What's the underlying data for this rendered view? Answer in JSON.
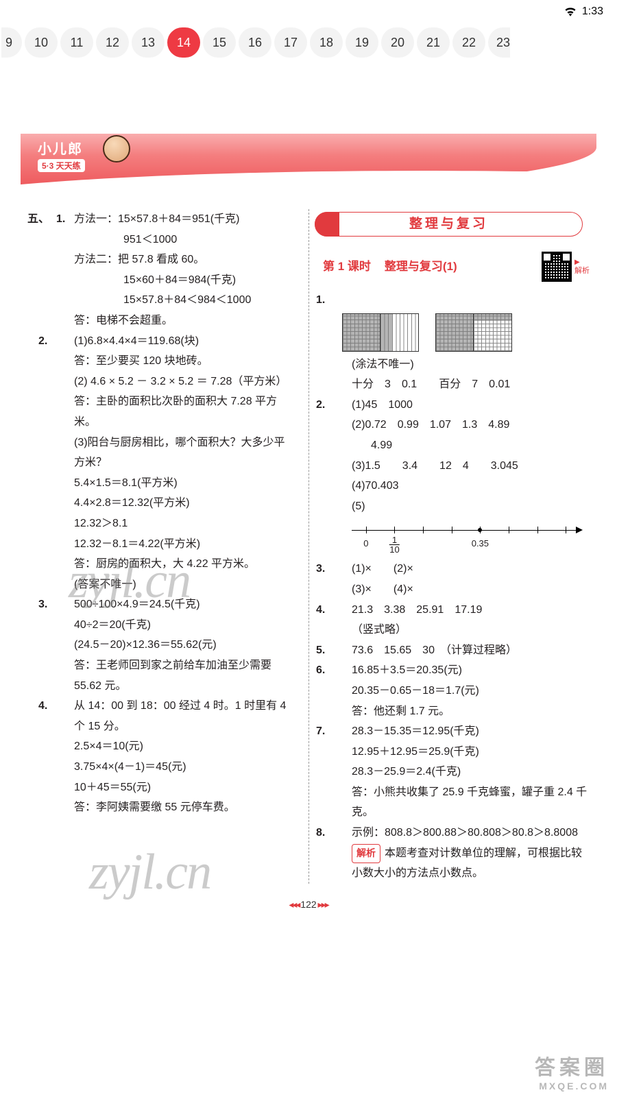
{
  "status": {
    "time": "1:33"
  },
  "nav": {
    "pages": [
      "9",
      "10",
      "11",
      "12",
      "13",
      "14",
      "15",
      "16",
      "17",
      "18",
      "19",
      "20",
      "21",
      "22",
      "23"
    ],
    "active_index": 5,
    "chip_bg": "#f3f3f3",
    "active_bg": "#ee3a43"
  },
  "banner": {
    "title": "小儿郎",
    "sub": "5·3 天天练"
  },
  "left": {
    "section": "五、",
    "items": [
      {
        "n": "1.",
        "lines": [
          "方法一：15×57.8＋84＝951(千克)",
          "951＜1000",
          "方法二：把 57.8 看成 60。",
          "15×60＋84＝984(千克)",
          "15×57.8＋84＜984＜1000",
          "答：电梯不会超重。"
        ]
      },
      {
        "n": "2.",
        "lines": [
          "(1)6.8×4.4×4＝119.68(块)",
          "答：至少要买 120 块地砖。",
          "(2) 4.6 × 5.2 － 3.2 × 5.2 ＝ 7.28（平方米）",
          "答：主卧的面积比次卧的面积大 7.28 平方米。",
          "(3)阳台与厨房相比，哪个面积大？大多少平方米？",
          "5.4×1.5＝8.1(平方米)",
          "4.4×2.8＝12.32(平方米)",
          "12.32＞8.1",
          "12.32－8.1＝4.22(平方米)",
          "答：厨房的面积大，大 4.22 平方米。",
          "(答案不唯一)"
        ]
      },
      {
        "n": "3.",
        "lines": [
          "500÷100×4.9＝24.5(千克)",
          "40÷2＝20(千克)",
          "(24.5－20)×12.36＝55.62(元)",
          "答：王老师回到家之前给车加油至少需要 55.62 元。"
        ]
      },
      {
        "n": "4.",
        "lines": [
          "从 14：00 到 18：00 经过 4 时。1 时里有 4 个 15 分。",
          "2.5×4＝10(元)",
          "3.75×4×(4－1)＝45(元)",
          "10＋45＝55(元)",
          "答：李阿姨需要缴 55 元停车费。"
        ]
      }
    ]
  },
  "right": {
    "section_title": "整理与复习",
    "lesson_label": "第 1 课时",
    "lesson_title": "整理与复习(1)",
    "qr_label": "解析",
    "q1": {
      "note": "(涂法不唯一)",
      "row": {
        "a": "十分",
        "b": "3",
        "c": "0.1",
        "d": "百分",
        "e": "7",
        "f": "0.01"
      },
      "grid1_strip_fill_pct": 30,
      "grid2_block_fill_rows_pct": 20
    },
    "q2": {
      "l1": "(1)45　1000",
      "l2": "(2)0.72　0.99　1.07　1.3　4.89",
      "l2b": "4.99",
      "l3": "(3)1.5　　3.4　　12　4　　3.045",
      "l4": "(4)70.403",
      "l5label": "(5)",
      "numline": {
        "ticks": [
          {
            "pos": 6,
            "label": "0"
          },
          {
            "pos": 18,
            "label_num": "1",
            "label_den": "10"
          },
          {
            "pos": 30
          },
          {
            "pos": 42
          },
          {
            "pos": 54,
            "dot": true,
            "label": "0.35"
          },
          {
            "pos": 66
          },
          {
            "pos": 78
          },
          {
            "pos": 90
          }
        ]
      }
    },
    "q3": {
      "a": "(1)×　　(2)×",
      "b": "(3)×　　(4)×"
    },
    "q4": {
      "a": "21.3　3.38　25.91　17.19",
      "b": "（竖式略）"
    },
    "q5": "73.6　15.65　30　（计算过程略）",
    "q6": {
      "a": "16.85＋3.5＝20.35(元)",
      "b": "20.35－0.65－18＝1.7(元)",
      "c": "答：他还剩 1.7 元。"
    },
    "q7": {
      "a": "28.3－15.35＝12.95(千克)",
      "b": "12.95＋12.95＝25.9(千克)",
      "c": "28.3－25.9＝2.4(千克)",
      "d": "答：小熊共收集了 25.9 千克蜂蜜，罐子重 2.4 千克。"
    },
    "q8": {
      "a": "示例：808.8＞800.88＞80.808＞80.8＞8.8008",
      "jiexi_tag": "解析",
      "jiexi": "本题考查对计数单位的理解，可根据比较小数大小的方法点小数点。"
    }
  },
  "watermark": "zyjl.cn",
  "footer_wm": {
    "t1": "答案圈",
    "t2": "MXQE.COM"
  },
  "page_number": "122",
  "colors": {
    "accent": "#e13a3e",
    "text": "#231f20"
  }
}
